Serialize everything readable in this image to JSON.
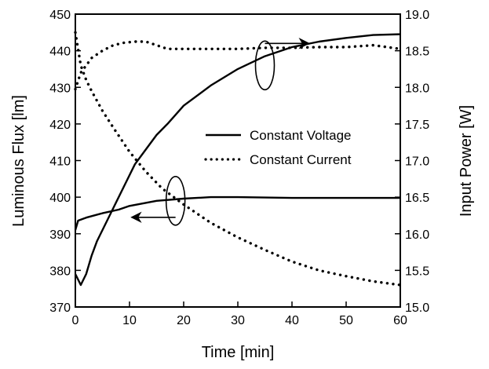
{
  "chart_data": {
    "type": "line",
    "title": "",
    "xlabel": "Time [min]",
    "ylabel_left": "Luminous Flux [lm]",
    "ylabel_right": "Input Power [W]",
    "xlim": [
      0,
      60
    ],
    "ylim_left": [
      370,
      450
    ],
    "ylim_right": [
      15.0,
      19.0
    ],
    "x_ticks": [
      "0",
      "10",
      "20",
      "30",
      "40",
      "50",
      "60"
    ],
    "y_left_ticks": [
      "370",
      "380",
      "390",
      "400",
      "410",
      "420",
      "430",
      "440",
      "450"
    ],
    "y_right_ticks": [
      "15.0",
      "15.5",
      "16.0",
      "16.5",
      "17.0",
      "17.5",
      "18.0",
      "18.5",
      "19.0"
    ],
    "grid": false,
    "legend_position": "center-right",
    "series": [
      {
        "name": "Constant Voltage",
        "style": "solid",
        "axis": "left",
        "quantity": "luminous flux",
        "x": [
          0,
          1,
          2,
          3,
          4,
          5,
          7,
          9,
          11,
          13,
          15,
          17,
          20,
          25,
          30,
          35,
          40,
          45,
          50,
          55,
          60
        ],
        "y": [
          379,
          376,
          379,
          384,
          388,
          391,
          397,
          403,
          409,
          413,
          417,
          420,
          425,
          430.5,
          435,
          438.5,
          441,
          442.5,
          443.5,
          444.3,
          444.5
        ]
      },
      {
        "name": "Constant Voltage",
        "style": "solid",
        "axis": "right",
        "quantity": "input power",
        "x": [
          0,
          0.5,
          2,
          5,
          8,
          10,
          15,
          20,
          25,
          30,
          40,
          50,
          60
        ],
        "y": [
          16.05,
          16.18,
          16.22,
          16.28,
          16.33,
          16.38,
          16.45,
          16.48,
          16.5,
          16.5,
          16.49,
          16.49,
          16.49
        ]
      },
      {
        "name": "Constant Current",
        "style": "dotted",
        "axis": "left",
        "quantity": "luminous flux",
        "x": [
          0,
          1,
          2,
          3,
          5,
          7,
          9,
          11,
          13,
          15,
          17,
          20,
          25,
          30,
          35,
          40,
          45,
          50,
          55,
          60
        ],
        "y": [
          429.5,
          434,
          436,
          438,
          440,
          441.5,
          442.2,
          442.5,
          442.5,
          441.5,
          440.5,
          440.5,
          440.5,
          440.5,
          440.8,
          440.8,
          441,
          441,
          441.5,
          440.5
        ]
      },
      {
        "name": "Constant Current",
        "style": "dotted",
        "axis": "right",
        "quantity": "input power",
        "x": [
          0,
          1,
          2,
          3,
          5,
          7,
          10,
          13,
          16,
          20,
          25,
          30,
          35,
          40,
          45,
          50,
          55,
          60
        ],
        "y": [
          18.75,
          18.3,
          18.1,
          17.95,
          17.68,
          17.45,
          17.12,
          16.85,
          16.62,
          16.4,
          16.15,
          15.95,
          15.78,
          15.62,
          15.5,
          15.42,
          15.35,
          15.3
        ]
      }
    ],
    "annotations": [
      {
        "type": "ellipse-arrow",
        "points_to": "right axis",
        "encircles": "curves near x = 35",
        "center": [
          35,
          436
        ]
      },
      {
        "type": "ellipse-arrow",
        "points_to": "left axis",
        "encircles": "curves near x = 18.5",
        "center": [
          18.5,
          399
        ]
      }
    ]
  }
}
